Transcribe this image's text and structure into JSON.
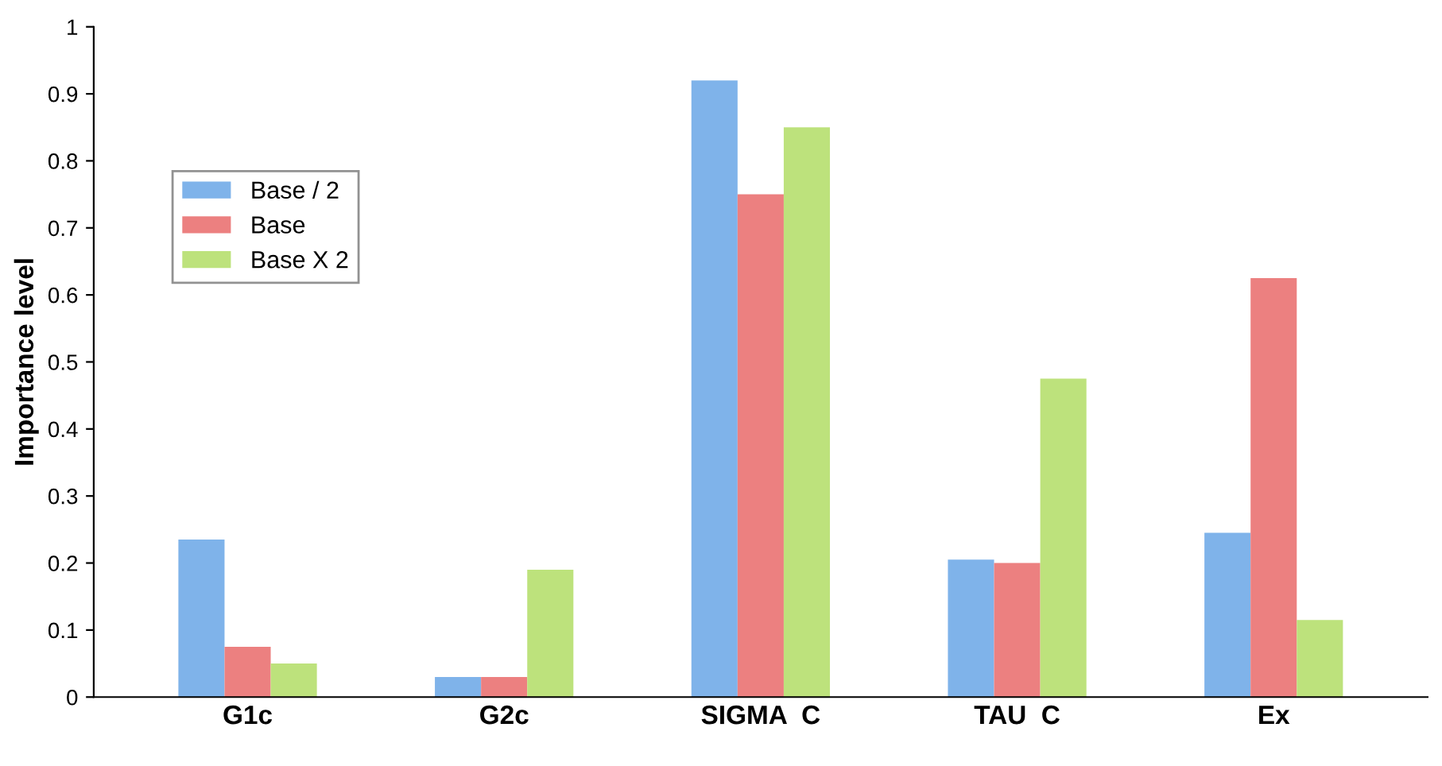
{
  "chart_data": {
    "type": "bar",
    "ylabel": "Importance level",
    "categories": [
      "G1c",
      "G2c",
      "SIGMA  C",
      "TAU  C",
      "Ex"
    ],
    "series": [
      {
        "name": "Base / 2",
        "color": "#7fb3ea",
        "values": [
          0.235,
          0.03,
          0.92,
          0.205,
          0.245
        ]
      },
      {
        "name": "Base",
        "color": "#ec8080",
        "values": [
          0.075,
          0.03,
          0.75,
          0.2,
          0.625
        ]
      },
      {
        "name": "Base X 2",
        "color": "#bde27c",
        "values": [
          0.05,
          0.19,
          0.85,
          0.475,
          0.115
        ]
      }
    ],
    "ylim": [
      0,
      1
    ],
    "yticks": [
      0,
      0.1,
      0.2,
      0.3,
      0.4,
      0.5,
      0.6,
      0.7,
      0.8,
      0.9,
      1
    ],
    "grid": false,
    "legend": "top left"
  }
}
